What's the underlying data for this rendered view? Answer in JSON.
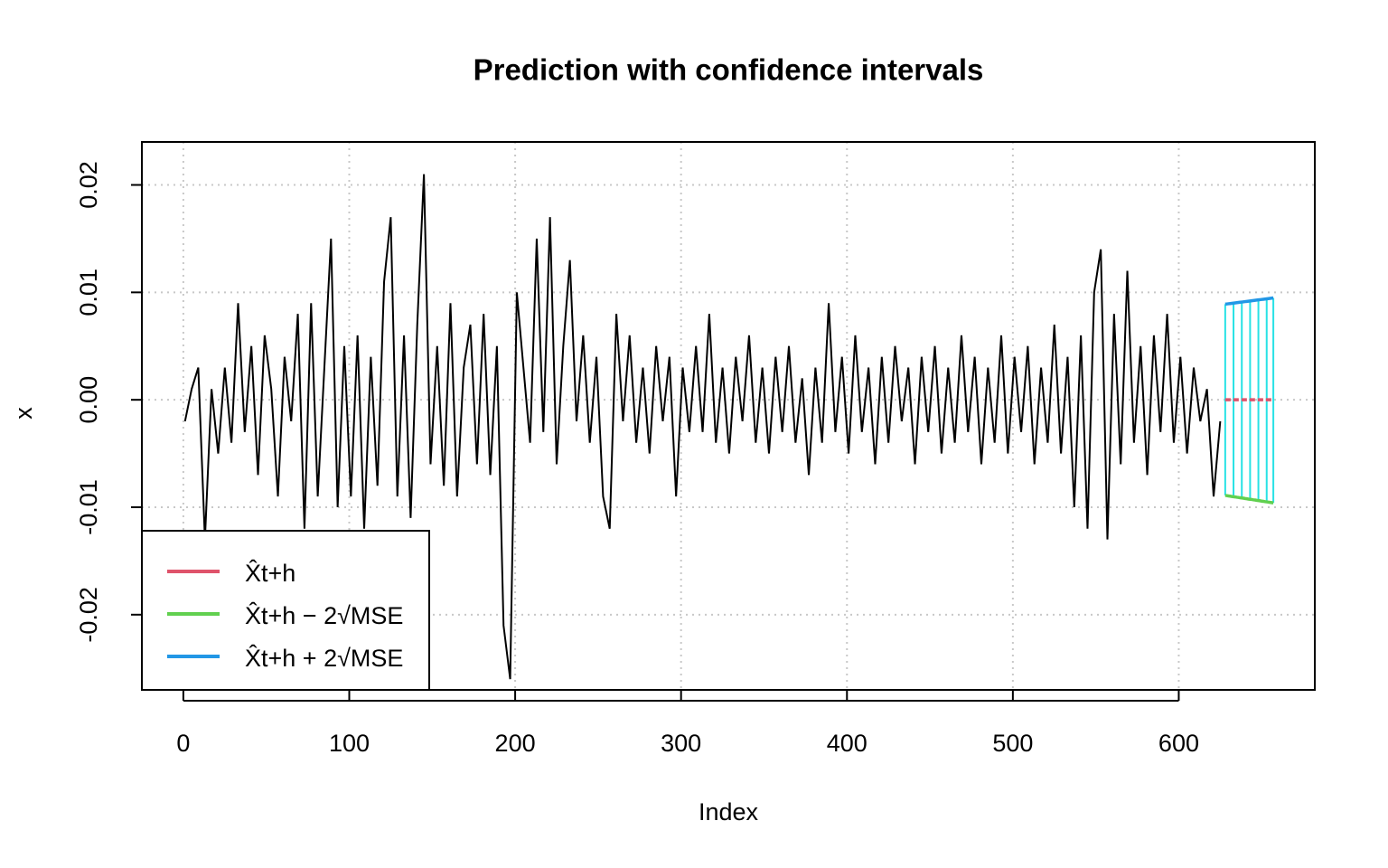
{
  "chart_data": {
    "type": "line",
    "title": "Prediction with confidence intervals",
    "x_label": "Index",
    "y_label": "x",
    "xlim": [
      -25,
      682
    ],
    "ylim": [
      -0.027,
      0.024
    ],
    "xticks": [
      0,
      100,
      200,
      300,
      400,
      500,
      600
    ],
    "yticks": [
      -0.02,
      -0.01,
      {
        "value": 0,
        "label": "0.00"
      },
      0.01,
      0.02
    ],
    "grid": true,
    "legend": "bottomleft",
    "interval_color": "#28E2E5",
    "series": [
      {
        "color": "#000000",
        "x": [
          1,
          5,
          9,
          13,
          17,
          21,
          25,
          29,
          33,
          37,
          41,
          45,
          49,
          53,
          57,
          61,
          65,
          69,
          73,
          77,
          81,
          85,
          89,
          93,
          97,
          101,
          105,
          109,
          113,
          117,
          121,
          125,
          129,
          133,
          137,
          141,
          145,
          149,
          153,
          157,
          161,
          165,
          169,
          173,
          177,
          181,
          185,
          189,
          193,
          197,
          201,
          205,
          209,
          213,
          217,
          221,
          225,
          229,
          233,
          237,
          241,
          245,
          249,
          253,
          257,
          261,
          265,
          269,
          273,
          277,
          281,
          285,
          289,
          293,
          297,
          301,
          305,
          309,
          313,
          317,
          321,
          325,
          329,
          333,
          337,
          341,
          345,
          349,
          353,
          357,
          361,
          365,
          369,
          373,
          377,
          381,
          385,
          389,
          393,
          397,
          401,
          405,
          409,
          413,
          417,
          421,
          425,
          429,
          433,
          437,
          441,
          445,
          449,
          453,
          457,
          461,
          465,
          469,
          473,
          477,
          481,
          485,
          489,
          493,
          497,
          501,
          505,
          509,
          513,
          517,
          521,
          525,
          529,
          533,
          537,
          541,
          545,
          549,
          553,
          557,
          561,
          565,
          569,
          573,
          577,
          581,
          585,
          589,
          593,
          597,
          601,
          605,
          609,
          613,
          617,
          621,
          625
        ],
        "values": [
          -0.002,
          0.001,
          0.003,
          -0.013,
          0.001,
          -0.005,
          0.003,
          -0.004,
          0.009,
          -0.003,
          0.005,
          -0.007,
          0.006,
          0.001,
          -0.009,
          0.004,
          -0.002,
          0.008,
          -0.012,
          0.009,
          -0.009,
          0.003,
          0.015,
          -0.01,
          0.005,
          -0.009,
          0.006,
          -0.012,
          0.004,
          -0.008,
          0.011,
          0.017,
          -0.009,
          0.006,
          -0.011,
          0.007,
          0.021,
          -0.006,
          0.005,
          -0.008,
          0.009,
          -0.009,
          0.003,
          0.007,
          -0.006,
          0.008,
          -0.007,
          0.005,
          -0.021,
          -0.026,
          0.01,
          0.003,
          -0.004,
          0.015,
          -0.003,
          0.017,
          -0.006,
          0.005,
          0.013,
          -0.002,
          0.006,
          -0.004,
          0.004,
          -0.009,
          -0.012,
          0.008,
          -0.002,
          0.006,
          -0.004,
          0.003,
          -0.005,
          0.005,
          -0.002,
          0.004,
          -0.009,
          0.003,
          -0.003,
          0.005,
          -0.003,
          0.008,
          -0.004,
          0.003,
          -0.005,
          0.004,
          -0.002,
          0.006,
          -0.004,
          0.003,
          -0.005,
          0.004,
          -0.003,
          0.005,
          -0.004,
          0.002,
          -0.007,
          0.003,
          -0.004,
          0.009,
          -0.003,
          0.004,
          -0.005,
          0.006,
          -0.003,
          0.003,
          -0.006,
          0.004,
          -0.004,
          0.005,
          -0.002,
          0.003,
          -0.006,
          0.004,
          -0.003,
          0.005,
          -0.005,
          0.003,
          -0.004,
          0.006,
          -0.003,
          0.004,
          -0.006,
          0.003,
          -0.004,
          0.006,
          -0.005,
          0.004,
          -0.003,
          0.005,
          -0.006,
          0.003,
          -0.004,
          0.007,
          -0.005,
          0.004,
          -0.01,
          0.006,
          -0.012,
          0.01,
          0.014,
          -0.013,
          0.008,
          -0.006,
          0.012,
          -0.004,
          0.005,
          -0.007,
          0.006,
          -0.003,
          0.008,
          -0.004,
          0.004,
          -0.005,
          0.003,
          -0.002,
          0.001,
          -0.009,
          -0.002
        ]
      },
      {
        "name": "X̂t+h",
        "color": "#DF536B",
        "x": [
          628,
          629,
          630,
          631,
          632,
          633,
          634,
          635,
          636,
          637,
          638,
          639,
          640,
          641,
          642,
          643,
          644,
          645,
          646,
          647,
          648,
          649,
          650,
          651,
          652,
          653,
          654,
          655,
          656,
          657
        ],
        "values": [
          0,
          0,
          0,
          0,
          0,
          0,
          0,
          0,
          0,
          0,
          0,
          0,
          0,
          0,
          0,
          0,
          0,
          0,
          0,
          0,
          0,
          0,
          0,
          0,
          0,
          0,
          0,
          0,
          0,
          0
        ]
      },
      {
        "name": "X̂t+h − 2√MSE",
        "color": "#61D04F",
        "x": [
          628,
          629,
          630,
          631,
          632,
          633,
          634,
          635,
          636,
          637,
          638,
          639,
          640,
          641,
          642,
          643,
          644,
          645,
          646,
          647,
          648,
          649,
          650,
          651,
          652,
          653,
          654,
          655,
          656,
          657
        ],
        "values": [
          -0.0089,
          -0.00892,
          -0.00895,
          -0.00897,
          -0.009,
          -0.00902,
          -0.00904,
          -0.00907,
          -0.00909,
          -0.00912,
          -0.00914,
          -0.00916,
          -0.00919,
          -0.00921,
          -0.00924,
          -0.00926,
          -0.00928,
          -0.00931,
          -0.00933,
          -0.00936,
          -0.00938,
          -0.0094,
          -0.00943,
          -0.00945,
          -0.00948,
          -0.0095,
          -0.00952,
          -0.00955,
          -0.00957,
          -0.0096
        ]
      },
      {
        "name": "X̂t+h + 2√MSE",
        "color": "#2297E6",
        "x": [
          628,
          629,
          630,
          631,
          632,
          633,
          634,
          635,
          636,
          637,
          638,
          639,
          640,
          641,
          642,
          643,
          644,
          645,
          646,
          647,
          648,
          649,
          650,
          651,
          652,
          653,
          654,
          655,
          656,
          657
        ],
        "values": [
          0.0089,
          0.00892,
          0.00894,
          0.00896,
          0.00898,
          0.009,
          0.00902,
          0.00904,
          0.00906,
          0.00908,
          0.0091,
          0.00912,
          0.00914,
          0.00916,
          0.00918,
          0.0092,
          0.00922,
          0.00924,
          0.00926,
          0.00928,
          0.0093,
          0.00932,
          0.00934,
          0.00936,
          0.00938,
          0.0094,
          0.00942,
          0.00944,
          0.00946,
          0.00948
        ]
      }
    ]
  }
}
